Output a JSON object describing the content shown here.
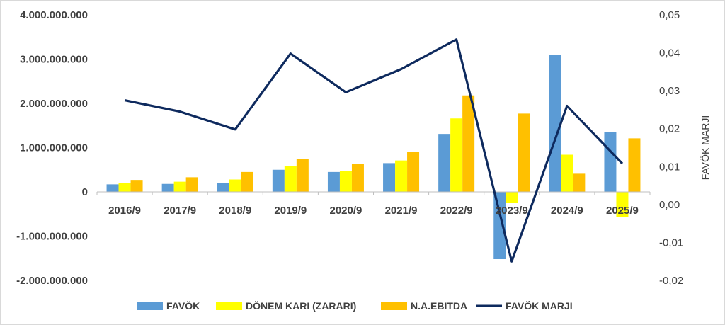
{
  "chart_data": {
    "type": "bar",
    "categories": [
      "2016/9",
      "2017/9",
      "2018/9",
      "2019/9",
      "2020/9",
      "2021/9",
      "2022/9",
      "2023/9",
      "2024/9",
      "2025/9"
    ],
    "series": [
      {
        "name": "FAVÖK",
        "type": "bar",
        "axis": "left",
        "color": "#5B9BD5",
        "values": [
          170000000,
          180000000,
          200000000,
          500000000,
          450000000,
          650000000,
          1310000000,
          -1520000000,
          3090000000,
          1350000000
        ]
      },
      {
        "name": "DÖNEM KARI (ZARARI)",
        "type": "bar",
        "axis": "left",
        "color": "#FFFF00",
        "values": [
          200000000,
          230000000,
          280000000,
          580000000,
          480000000,
          710000000,
          1660000000,
          -250000000,
          840000000,
          -570000000
        ]
      },
      {
        "name": "N.A.EBITDA",
        "type": "bar",
        "axis": "left",
        "color": "#FFC000",
        "values": [
          270000000,
          330000000,
          450000000,
          750000000,
          630000000,
          910000000,
          2180000000,
          1770000000,
          410000000,
          1210000000
        ]
      },
      {
        "name": "FAVÖK MARJI",
        "type": "line",
        "axis": "right",
        "color": "#0E2A5E",
        "values": [
          0.0275,
          0.0245,
          0.0198,
          0.0398,
          0.0296,
          0.0357,
          0.0435,
          -0.015,
          0.026,
          0.0108
        ]
      }
    ],
    "left_axis": {
      "ylim": [
        -2000000000,
        4000000000
      ],
      "ticks": [
        {
          "value": 4000000000,
          "label": "4.000.000.000"
        },
        {
          "value": 3000000000,
          "label": "3.000.000.000"
        },
        {
          "value": 2000000000,
          "label": "2.000.000.000"
        },
        {
          "value": 1000000000,
          "label": "1.000.000.000"
        },
        {
          "value": 0,
          "label": "0"
        },
        {
          "value": -1000000000,
          "label": "-1.000.000.000"
        },
        {
          "value": -2000000000,
          "label": "-2.000.000.000"
        }
      ]
    },
    "right_axis": {
      "label": "FAVÖK MARJI",
      "ylim": [
        -0.02,
        0.05
      ],
      "ticks": [
        {
          "value": 0.05,
          "label": "0,05"
        },
        {
          "value": 0.04,
          "label": "0,04"
        },
        {
          "value": 0.03,
          "label": "0,03"
        },
        {
          "value": 0.02,
          "label": "0,02"
        },
        {
          "value": 0.01,
          "label": "0,01"
        },
        {
          "value": 0.0,
          "label": "0,00"
        },
        {
          "value": -0.01,
          "label": "-0,01"
        },
        {
          "value": -0.02,
          "label": "-0,02"
        }
      ]
    },
    "grid": false,
    "legend_position": "bottom"
  }
}
